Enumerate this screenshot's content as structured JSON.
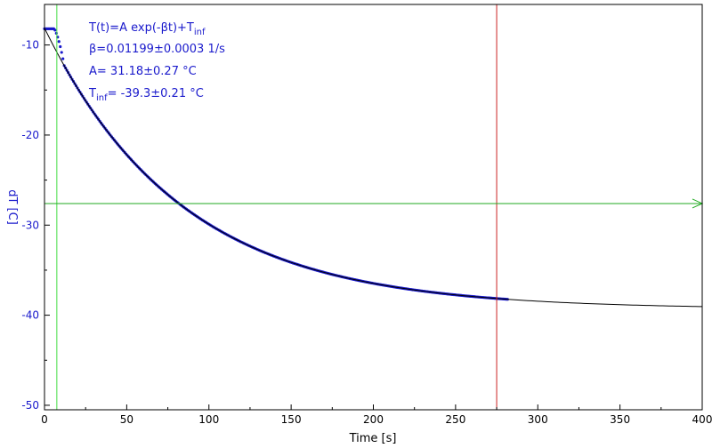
{
  "chart_data": {
    "type": "scatter",
    "xlabel": "Time [s]",
    "ylabel": "dT [C]",
    "xlim": [
      0,
      400
    ],
    "ylim": [
      -50.5,
      -5.5
    ],
    "x_ticks": [
      "0",
      "50",
      "100",
      "150",
      "200",
      "250",
      "300",
      "350",
      "400"
    ],
    "y_ticks": [
      "-10",
      "-20",
      "-30",
      "-40",
      "-50"
    ],
    "fit": {
      "line1": "T(t)=A exp(-βt)+T",
      "line1_sub": "inf",
      "line2": "β=0.01199±0.0003 1/s",
      "line3": "A= 31.18±0.27 °C",
      "line4_pre": "T",
      "line4_sub": "inf",
      "line4_post": "= -39.3±0.21 °C",
      "A": 31.18,
      "beta": 0.01199,
      "T_inf": -39.3,
      "x_range": [
        0,
        400
      ]
    },
    "measured": {
      "x_range": [
        0,
        282
      ],
      "plateau_until": 6,
      "plateau_value": -8.2
    },
    "markers": {
      "green_vertical_x": 7.5,
      "red_vertical_x": 275,
      "green_horizontal_y": -27.6
    },
    "colors": {
      "data": "#1a1acc",
      "fit": "#000000",
      "green": "#22aa22",
      "lime": "#44dd44",
      "red": "#cc2222",
      "axis_text": "#1a1acc",
      "tick_text": "#000000"
    }
  }
}
